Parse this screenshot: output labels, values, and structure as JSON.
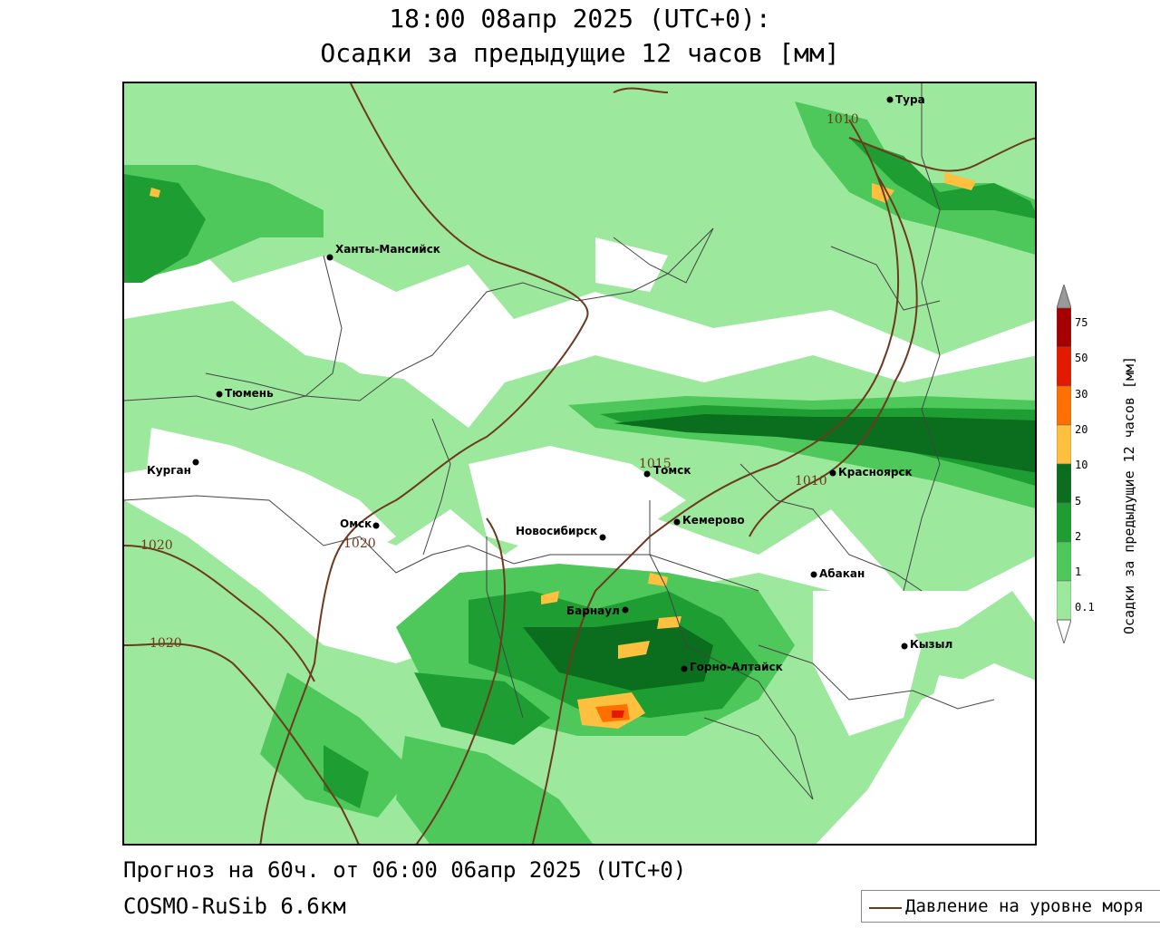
{
  "title": {
    "line1": "18:00 08апр 2025 (UTC+0):",
    "line2": "Осадки за предыдущие 12 часов [мм]"
  },
  "footer": {
    "forecast": "Прогноз на 60ч. от 06:00 06апр 2025 (UTC+0)",
    "model": "COSMO-RuSib 6.6км"
  },
  "legend": {
    "isobar_label": "Давление на уровне моря",
    "isobar_color": "#6e3a1f"
  },
  "colorbar": {
    "title": "Осадки за предыдущие 12 часов [мм]",
    "ticks": [
      "75",
      "50",
      "30",
      "20",
      "10",
      "5",
      "2",
      "1",
      "0.1"
    ],
    "colors": [
      "#999999",
      "#a50000",
      "#e41a00",
      "#ff7000",
      "#ffc040",
      "#0a6e1e",
      "#1e9e32",
      "#4ec85a",
      "#9ce89c",
      "#ffffff"
    ]
  },
  "cities": [
    {
      "name": "Тура"
    },
    {
      "name": "Ханты-Мансийск"
    },
    {
      "name": "Тюмень"
    },
    {
      "name": "Курган"
    },
    {
      "name": "Омск"
    },
    {
      "name": "Новосибирск"
    },
    {
      "name": "Томск"
    },
    {
      "name": "Кемерово"
    },
    {
      "name": "Красноярск"
    },
    {
      "name": "Абакан"
    },
    {
      "name": "Барнаул"
    },
    {
      "name": "Горно-Алтайск"
    },
    {
      "name": "Кызыл"
    }
  ],
  "isobars": [
    "1010",
    "1015",
    "1010",
    "1020",
    "1020",
    "1020"
  ]
}
